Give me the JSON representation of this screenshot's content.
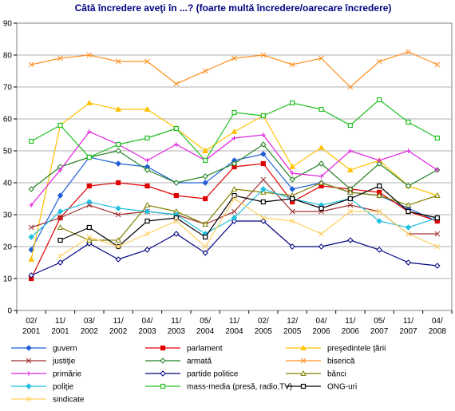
{
  "chart_data": {
    "type": "line",
    "title": "Câtă încredere aveţi în ...? (foarte multă încredere/oarecare încredere)",
    "xlabel": "",
    "ylabel": "",
    "ylim": [
      0,
      90
    ],
    "yticks": [
      0,
      10,
      20,
      30,
      40,
      50,
      60,
      70,
      80,
      90
    ],
    "grid": true,
    "legend_position": "bottom",
    "categories": [
      [
        "02/",
        "2001"
      ],
      [
        "11/",
        "2001"
      ],
      [
        "03/",
        "2002"
      ],
      [
        "11/",
        "2002"
      ],
      [
        "04/",
        "2003"
      ],
      [
        "11/",
        "2003"
      ],
      [
        "05/",
        "2004"
      ],
      [
        "11/",
        "2004"
      ],
      [
        "02/",
        "2005"
      ],
      [
        "12/",
        "2005"
      ],
      [
        "04/",
        "2006"
      ],
      [
        "11/",
        "2006"
      ],
      [
        "05/",
        "2007"
      ],
      [
        "11/",
        "2007"
      ],
      [
        "04/",
        "2008"
      ]
    ],
    "series": [
      {
        "name": "guvern",
        "color": "#1f5fd6",
        "marker": "diamond-filled",
        "values": [
          19,
          36,
          48,
          46,
          45,
          40,
          40,
          47,
          49,
          38,
          40,
          37,
          36,
          32,
          28
        ]
      },
      {
        "name": "parlament",
        "color": "#e00000",
        "marker": "square-filled",
        "values": [
          10,
          29,
          39,
          40,
          39,
          36,
          35,
          45,
          46,
          34,
          39,
          38,
          37,
          31,
          28
        ]
      },
      {
        "name": "preşedintele ţării",
        "color": "#ffc000",
        "marker": "triangle-filled",
        "values": [
          16,
          58,
          65,
          63,
          63,
          57,
          50,
          56,
          61,
          45,
          51,
          44,
          47,
          39,
          36
        ]
      },
      {
        "name": "justiţie",
        "color": "#a03030",
        "marker": "x",
        "values": [
          26,
          29,
          33,
          30,
          31,
          30,
          27,
          31,
          41,
          31,
          31,
          33,
          31,
          24,
          24
        ]
      },
      {
        "name": "armată",
        "color": "#208020",
        "marker": "diamond-open",
        "values": [
          38,
          45,
          48,
          50,
          44,
          40,
          42,
          46,
          52,
          41,
          46,
          38,
          46,
          39,
          44
        ]
      },
      {
        "name": "biserică",
        "color": "#ff9020",
        "marker": "x",
        "values": [
          77,
          79,
          80,
          78,
          78,
          71,
          75,
          79,
          80,
          77,
          79,
          70,
          78,
          81,
          77
        ]
      },
      {
        "name": "primărie",
        "color": "#e020e0",
        "marker": "plus",
        "values": [
          33,
          44,
          56,
          52,
          47,
          52,
          47,
          54,
          55,
          43,
          42,
          50,
          47,
          50,
          44
        ]
      },
      {
        "name": "partide politice",
        "color": "#000080",
        "marker": "diamond-open",
        "values": [
          11,
          15,
          21,
          16,
          19,
          24,
          18,
          28,
          28,
          20,
          20,
          22,
          19,
          15,
          14
        ]
      },
      {
        "name": "bănci",
        "color": "#808000",
        "marker": "triangle-open",
        "values": [
          null,
          26,
          22,
          22,
          33,
          31,
          27,
          38,
          37,
          36,
          40,
          37,
          36,
          33,
          36
        ]
      },
      {
        "name": "poliţie",
        "color": "#20c0e0",
        "marker": "diamond-filled",
        "values": [
          23,
          31,
          34,
          32,
          31,
          30,
          24,
          29,
          38,
          35,
          33,
          35,
          28,
          26,
          29
        ]
      },
      {
        "name": "mass-media (presă, radio,TV)",
        "color": "#20c020",
        "marker": "square-open",
        "values": [
          53,
          58,
          48,
          52,
          54,
          57,
          47,
          62,
          61,
          65,
          63,
          58,
          66,
          59,
          54
        ]
      },
      {
        "name": "ONG-uri",
        "color": "#000000",
        "marker": "square-open",
        "values": [
          null,
          22,
          26,
          20,
          28,
          29,
          23,
          36,
          34,
          35,
          32,
          35,
          39,
          31,
          29
        ]
      },
      {
        "name": "sindicate",
        "color": "#ffd060",
        "marker": "x",
        "values": [
          null,
          17,
          23,
          20,
          24,
          28,
          20,
          35,
          29,
          28,
          24,
          31,
          31,
          24,
          20
        ]
      }
    ]
  }
}
